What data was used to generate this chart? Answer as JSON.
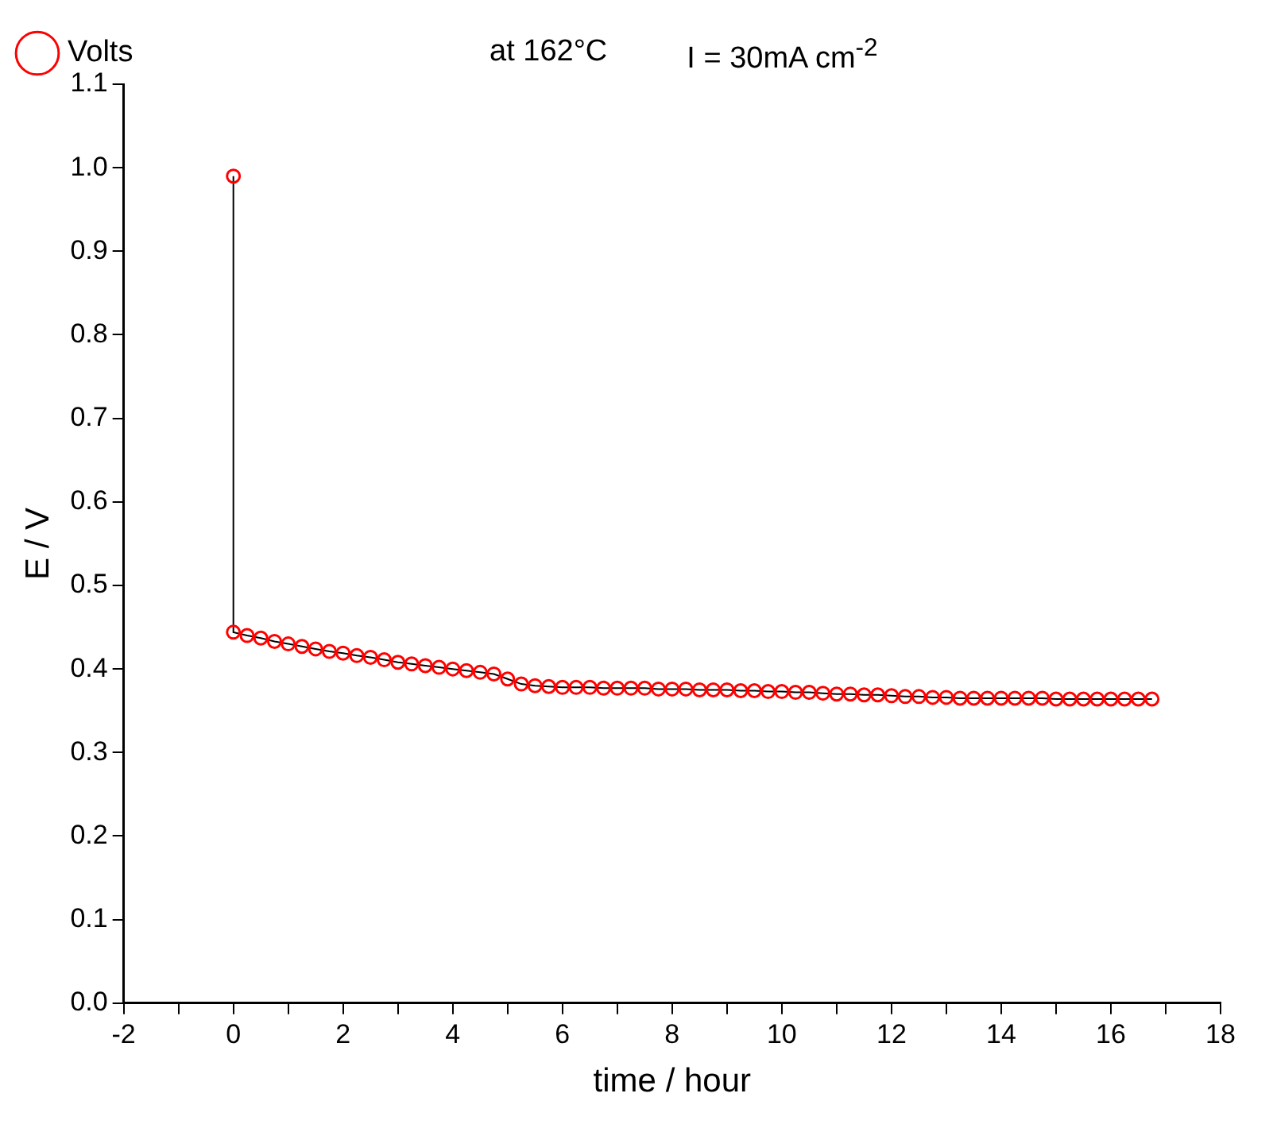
{
  "chart_data": {
    "type": "line",
    "xlabel": "time / hour",
    "ylabel": "E / V",
    "annotations": [
      "at 162°C",
      "I = 30mA cm$^{-2}$"
    ],
    "x": [
      0,
      0,
      0.25,
      0.5,
      0.75,
      1,
      1.25,
      1.5,
      1.75,
      2,
      2.25,
      2.5,
      2.75,
      3,
      3.25,
      3.5,
      3.75,
      4,
      4.25,
      4.5,
      4.75,
      5,
      5.25,
      5.5,
      5.75,
      6,
      6.25,
      6.5,
      6.75,
      7,
      7.25,
      7.5,
      7.75,
      8,
      8.25,
      8.5,
      8.75,
      9,
      9.25,
      9.5,
      9.75,
      10,
      10.25,
      10.5,
      10.75,
      11,
      11.25,
      11.5,
      11.75,
      12,
      12.25,
      12.5,
      12.75,
      13,
      13.25,
      13.5,
      13.75,
      14,
      14.25,
      14.5,
      14.75,
      15,
      15.25,
      15.5,
      15.75,
      16,
      16.25,
      16.5,
      16.75
    ],
    "series": [
      {
        "name": "Volts",
        "color": "#ff0000",
        "values": [
          0.99,
          0.444,
          0.44,
          0.437,
          0.433,
          0.43,
          0.427,
          0.424,
          0.421,
          0.419,
          0.416,
          0.414,
          0.411,
          0.408,
          0.406,
          0.404,
          0.402,
          0.4,
          0.398,
          0.396,
          0.394,
          0.388,
          0.382,
          0.38,
          0.379,
          0.378,
          0.378,
          0.378,
          0.377,
          0.377,
          0.377,
          0.377,
          0.376,
          0.376,
          0.376,
          0.375,
          0.375,
          0.375,
          0.374,
          0.374,
          0.373,
          0.373,
          0.372,
          0.372,
          0.371,
          0.37,
          0.37,
          0.369,
          0.369,
          0.368,
          0.367,
          0.367,
          0.366,
          0.366,
          0.365,
          0.365,
          0.365,
          0.365,
          0.365,
          0.365,
          0.365,
          0.364,
          0.364,
          0.364,
          0.364,
          0.364,
          0.364,
          0.364,
          0.364
        ]
      }
    ],
    "xlim": [
      -2,
      18
    ],
    "xticks": [
      -2,
      {
        "value": -1,
        "label": null
      },
      0,
      {
        "value": 1,
        "label": null
      },
      2,
      {
        "value": 3,
        "label": null
      },
      4,
      {
        "value": 5,
        "label": null
      },
      6,
      {
        "value": 7,
        "label": null
      },
      8,
      {
        "value": 9,
        "label": null
      },
      10,
      {
        "value": 11,
        "label": null
      },
      12,
      {
        "value": 13,
        "label": null
      },
      14,
      {
        "value": 15,
        "label": null
      },
      16,
      {
        "value": 17,
        "label": null
      },
      18
    ],
    "ylim": [
      0,
      1.1
    ],
    "yticks": [
      {
        "value": 0,
        "label": "0.0"
      },
      0.1,
      0.2,
      0.3,
      0.4,
      0.5,
      0.6,
      0.7,
      0.8,
      0.9,
      {
        "value": 1,
        "label": "1.0"
      },
      1.1
    ],
    "marker": "circle",
    "line_style": "solid",
    "legend": "top left",
    "grid": false
  }
}
